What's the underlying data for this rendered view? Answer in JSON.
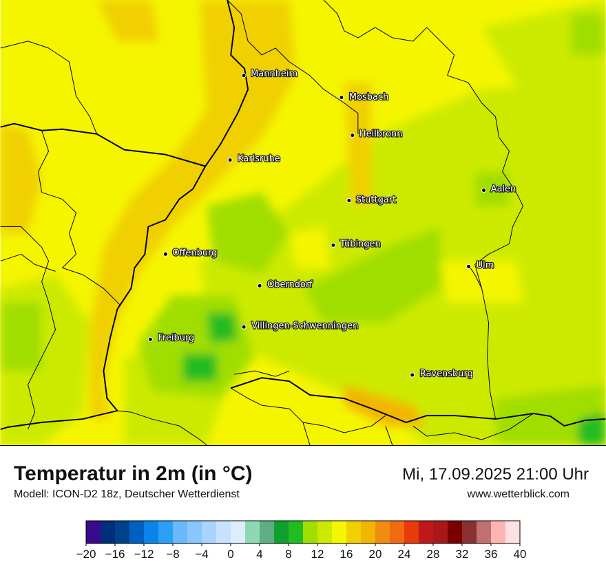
{
  "title": "Temperatur in 2m (in °C)",
  "model_info": "Modell: ICON-D2 18z, Deutscher Wetterdienst",
  "datetime": "Mi, 17.09.2025 21:00 Uhr",
  "website": "www.wetterblick.com",
  "colors": {
    "warm_orange": "#f0d000",
    "yellow": "#f5f500",
    "yellow_green": "#ccea00",
    "light_green": "#a0de00",
    "green": "#22bb22"
  },
  "cities": [
    {
      "name": "Mannheim"
    },
    {
      "name": "Mosbach"
    },
    {
      "name": "Heilbronn"
    },
    {
      "name": "Karlsruhe"
    },
    {
      "name": "Aalen"
    },
    {
      "name": "Stuttgart"
    },
    {
      "name": "Tübingen"
    },
    {
      "name": "Offenburg"
    },
    {
      "name": "Ulm"
    },
    {
      "name": "Oberndorf"
    },
    {
      "name": "Villingen-Schwenningen"
    },
    {
      "name": "Freiburg"
    },
    {
      "name": "Ravensburg"
    }
  ],
  "legend": {
    "labels": [
      "−20",
      "−16",
      "−12",
      "−8",
      "−4",
      "0",
      "4",
      "8",
      "12",
      "16",
      "20",
      "24",
      "28",
      "32",
      "36",
      "40"
    ],
    "colors": [
      "#3a0a8c",
      "#002e7a",
      "#00418c",
      "#0060c0",
      "#0a84ea",
      "#2aa0f6",
      "#6ab9fa",
      "#8ac6fc",
      "#a8d4fd",
      "#c6e2fe",
      "#dceefe",
      "#8ed8b4",
      "#5fae82",
      "#10a030",
      "#22bb22",
      "#a0de00",
      "#ccea00",
      "#f5f500",
      "#f0d000",
      "#f2b600",
      "#f28c10",
      "#f26a10",
      "#e83a0a",
      "#c01818",
      "#a81818",
      "#7a0000",
      "#8a3030",
      "#c07070",
      "#ffb4b4",
      "#ffe0e0"
    ]
  }
}
